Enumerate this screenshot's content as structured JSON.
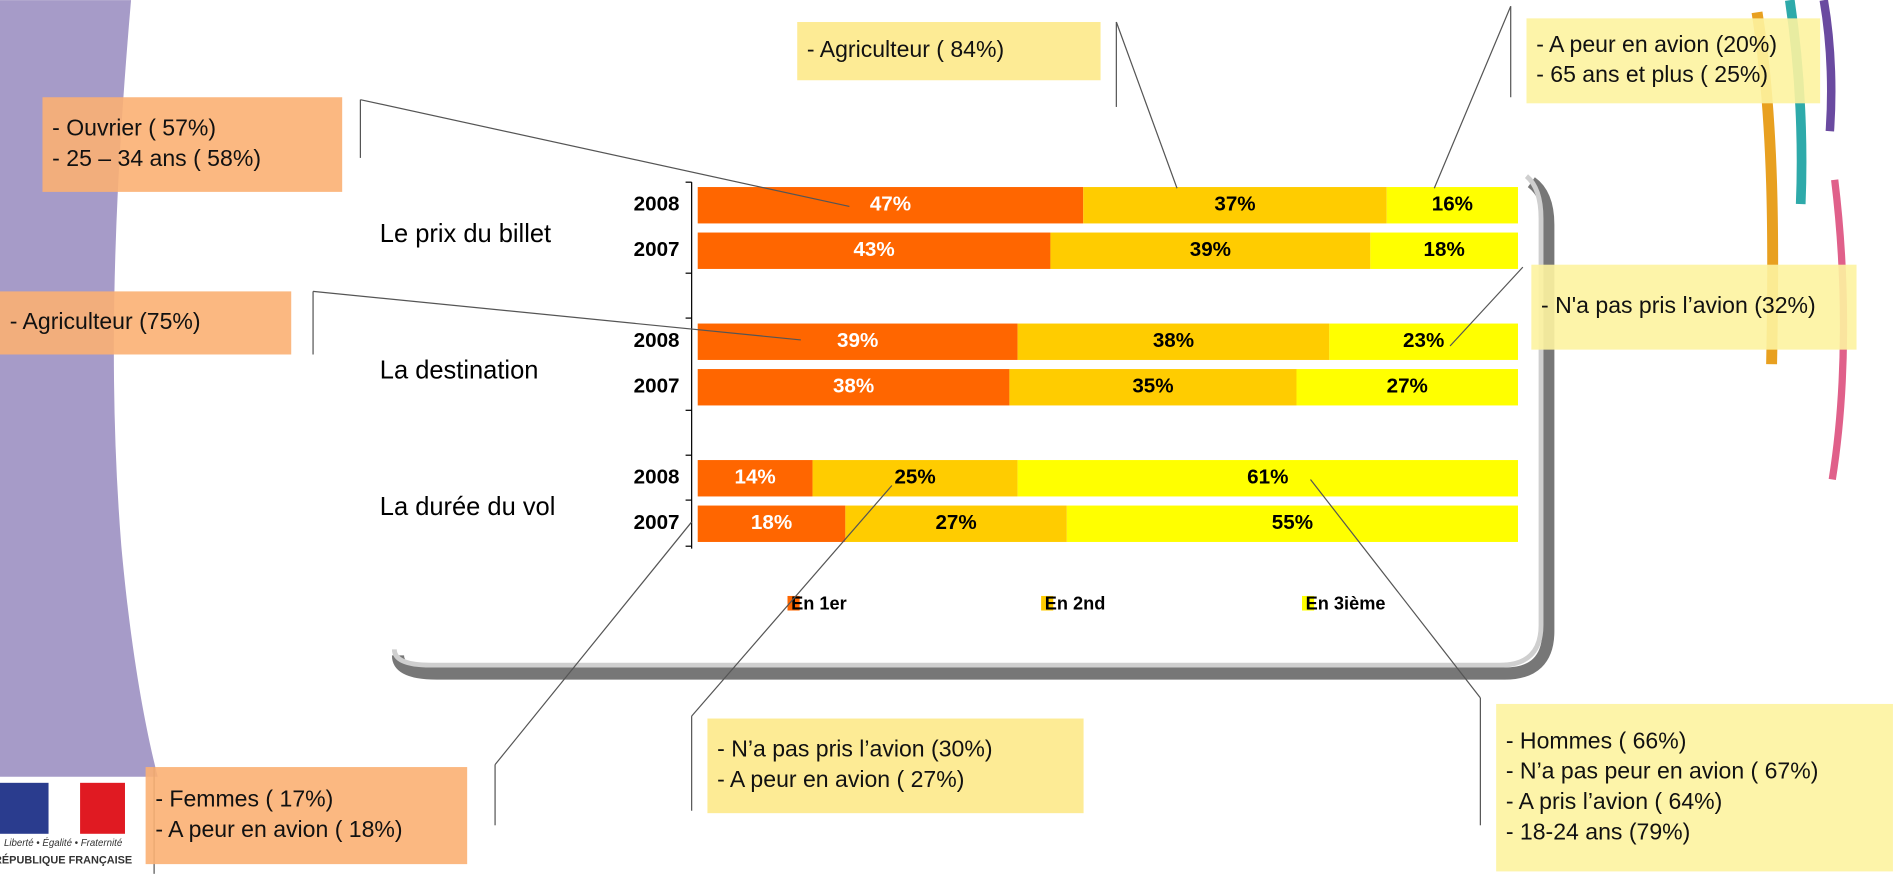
{
  "chart_data": {
    "type": "bar",
    "orientation": "horizontal",
    "stacked": true,
    "categories": [
      "2008",
      "2007",
      "2008",
      "2007",
      "2008",
      "2007"
    ],
    "groups": [
      "Le prix du billet",
      "La destination",
      "La durée du vol"
    ],
    "xlim": [
      0,
      100
    ],
    "legend": "bottom",
    "series": [
      {
        "name": "En 1er",
        "color": "#ff6600",
        "label_color": "#ffffff",
        "values": [
          47,
          43,
          39,
          38,
          14,
          18
        ],
        "value_labels": [
          "47%",
          "43%",
          "39%",
          "38%",
          "14%",
          "18%"
        ]
      },
      {
        "name": "En 2nd",
        "color": "#ffcc00",
        "label_color": "#000000",
        "values": [
          37,
          39,
          38,
          35,
          25,
          27
        ],
        "value_labels": [
          "37%",
          "39%",
          "38%",
          "35%",
          "25%",
          "27%"
        ]
      },
      {
        "name": "En 3ième",
        "color": "#ffff00",
        "label_color": "#000000",
        "values": [
          16,
          18,
          23,
          27,
          61,
          55
        ],
        "value_labels": [
          "16%",
          "18%",
          "23%",
          "27%",
          "61%",
          "55%"
        ]
      }
    ]
  },
  "annotations": [
    {
      "lines": [
        "- Agriculteur ( 84%)"
      ]
    },
    {
      "lines": [
        "- A peur en avion (20%)",
        "- 65 ans et plus ( 25%)"
      ]
    },
    {
      "lines": [
        "- Ouvrier ( 57%)",
        "- 25 – 34 ans ( 58%)"
      ]
    },
    {
      "lines": [
        "- Agriculteur (75%)"
      ]
    },
    {
      "lines": [
        "- N'a pas pris l’avion (32%)"
      ]
    },
    {
      "lines": [
        "- Femmes ( 17%)",
        "- A peur en avion ( 18%)"
      ]
    },
    {
      "lines": [
        "- N’a pas pris l’avion (30%)",
        "- A peur en avion ( 27%)"
      ]
    },
    {
      "lines": [
        "- Hommes ( 66%)",
        "- N’a pas peur en avion ( 67%)",
        "- A pris l’avion ( 64%)",
        "- 18-24 ans (79%)"
      ]
    }
  ],
  "logo": {
    "motto": "Liberté • Égalité • Fraternité",
    "name": "RÉPUBLIQUE FRANÇAISE"
  }
}
